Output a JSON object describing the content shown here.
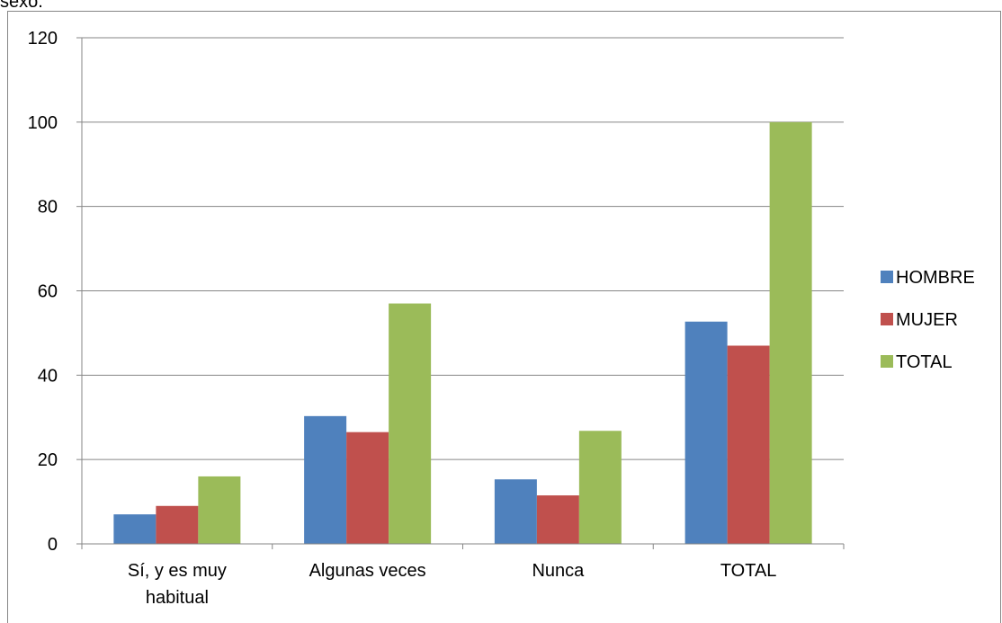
{
  "header": {
    "clipped_text": "sexo."
  },
  "chart_data": {
    "type": "bar",
    "title": "",
    "xlabel": "",
    "ylabel": "",
    "categories": [
      "Sí, y es muy habitual",
      "Algunas veces",
      "Nunca",
      "TOTAL"
    ],
    "category_lines": [
      [
        "Sí, y es muy",
        "habitual"
      ],
      [
        "Algunas veces"
      ],
      [
        "Nunca"
      ],
      [
        "TOTAL"
      ]
    ],
    "series": [
      {
        "name": "HOMBRE",
        "color": "#4F81BD",
        "values": [
          7,
          30.3,
          15.3,
          52.7
        ]
      },
      {
        "name": "MUJER",
        "color": "#C0504D",
        "values": [
          9,
          26.5,
          11.5,
          47
        ]
      },
      {
        "name": "TOTAL",
        "color": "#9BBB59",
        "values": [
          16,
          57,
          26.8,
          100
        ]
      }
    ],
    "ylim": [
      0,
      120
    ],
    "yticks": [
      0,
      20,
      40,
      60,
      80,
      100,
      120
    ],
    "grid": true,
    "legend": "right"
  }
}
